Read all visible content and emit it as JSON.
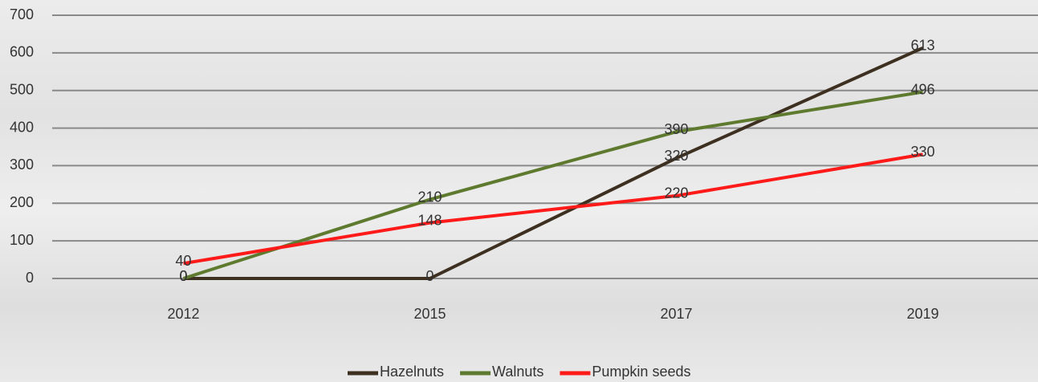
{
  "chart_data": {
    "type": "line",
    "categories": [
      "2012",
      "2015",
      "2017",
      "2019"
    ],
    "series": [
      {
        "name": "Hazelnuts",
        "color": "#3d3020",
        "values": [
          0,
          0,
          320,
          613
        ]
      },
      {
        "name": "Walnuts",
        "color": "#5e7a2e",
        "values": [
          0,
          210,
          390,
          496
        ]
      },
      {
        "name": "Pumpkin seeds",
        "color": "#ff1a1a",
        "values": [
          40,
          148,
          220,
          330
        ]
      }
    ],
    "ylim": [
      0,
      700
    ],
    "yticks": [
      0,
      100,
      200,
      300,
      400,
      500,
      600,
      700
    ],
    "grid": true,
    "legend": "bottom"
  }
}
